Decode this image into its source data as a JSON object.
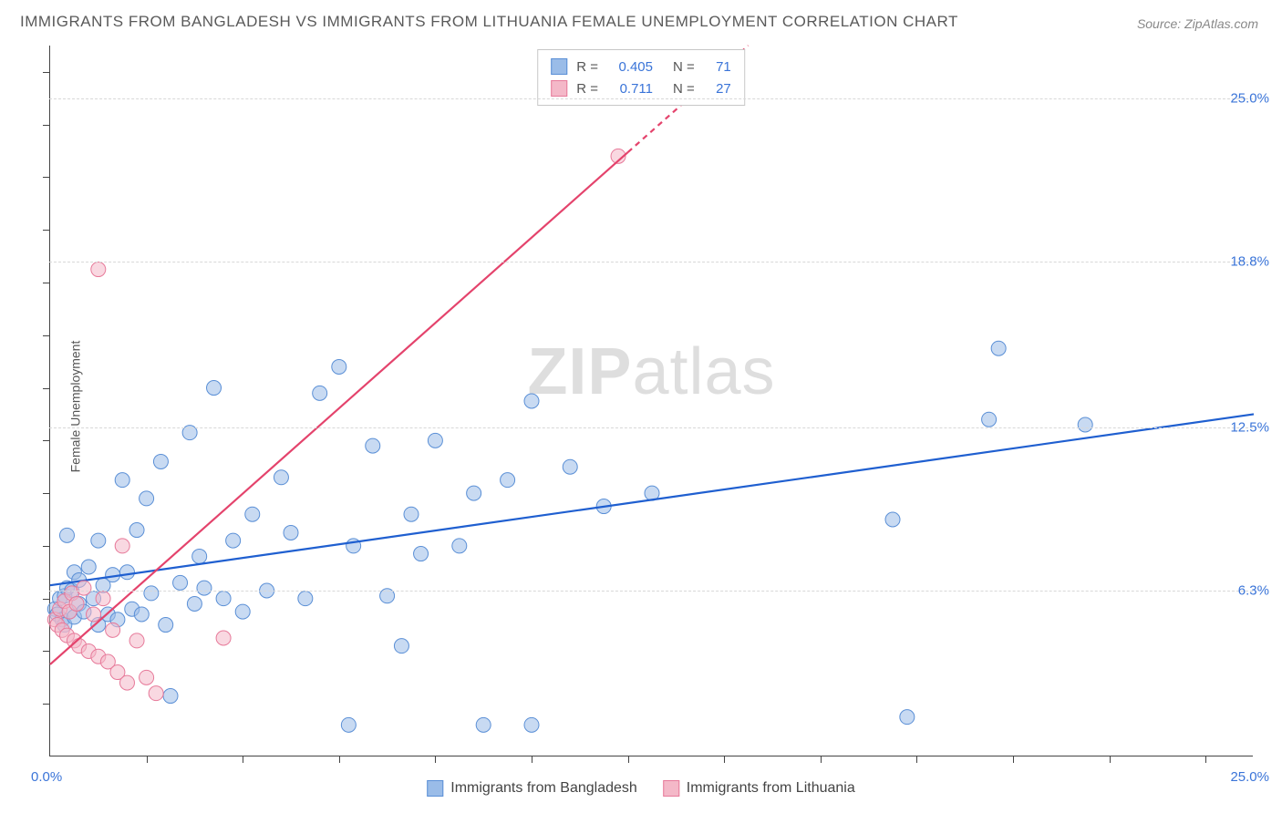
{
  "title": "IMMIGRANTS FROM BANGLADESH VS IMMIGRANTS FROM LITHUANIA FEMALE UNEMPLOYMENT CORRELATION CHART",
  "source": "Source: ZipAtlas.com",
  "y_axis_label": "Female Unemployment",
  "watermark": {
    "part1": "ZIP",
    "part2": "atlas"
  },
  "chart": {
    "type": "scatter",
    "xlim": [
      0,
      25
    ],
    "ylim": [
      0,
      27
    ],
    "x_ticks": [
      0.0,
      25.0
    ],
    "x_tick_labels": [
      "0.0%",
      "25.0%"
    ],
    "x_minor_ticks": [
      2.0,
      4.0,
      6.0,
      8.0,
      10.0,
      12.0,
      14.0,
      16.0,
      18.0,
      20.0,
      22.0,
      24.0
    ],
    "y_ticks": [
      6.3,
      12.5,
      18.8,
      25.0
    ],
    "y_tick_labels": [
      "6.3%",
      "12.5%",
      "18.8%",
      "25.0%"
    ],
    "grid_color": "#d8d8d8",
    "background_color": "#ffffff",
    "axis_color": "#444444",
    "marker_radius": 8,
    "marker_opacity": 0.55,
    "series": [
      {
        "name": "Immigrants from Bangladesh",
        "color_fill": "#9abce8",
        "color_stroke": "#5a8fd6",
        "line_color": "#1f5fd0",
        "line_width": 2.2,
        "R": "0.405",
        "N": "71",
        "regression": {
          "x1": 0,
          "y1": 6.5,
          "x2": 25,
          "y2": 13.0
        },
        "points": [
          [
            0.1,
            5.6
          ],
          [
            0.15,
            5.4
          ],
          [
            0.2,
            6.0
          ],
          [
            0.25,
            5.2
          ],
          [
            0.3,
            6.1
          ],
          [
            0.3,
            5.0
          ],
          [
            0.35,
            6.4
          ],
          [
            0.35,
            8.4
          ],
          [
            0.4,
            5.5
          ],
          [
            0.45,
            6.3
          ],
          [
            0.5,
            7.0
          ],
          [
            0.5,
            5.3
          ],
          [
            0.6,
            5.8
          ],
          [
            0.6,
            6.7
          ],
          [
            0.7,
            5.5
          ],
          [
            0.8,
            7.2
          ],
          [
            0.9,
            6.0
          ],
          [
            1.0,
            5.0
          ],
          [
            1.0,
            8.2
          ],
          [
            1.1,
            6.5
          ],
          [
            1.2,
            5.4
          ],
          [
            1.3,
            6.9
          ],
          [
            1.4,
            5.2
          ],
          [
            1.5,
            10.5
          ],
          [
            1.6,
            7.0
          ],
          [
            1.7,
            5.6
          ],
          [
            1.8,
            8.6
          ],
          [
            1.9,
            5.4
          ],
          [
            2.0,
            9.8
          ],
          [
            2.1,
            6.2
          ],
          [
            2.3,
            11.2
          ],
          [
            2.4,
            5.0
          ],
          [
            2.5,
            2.3
          ],
          [
            2.7,
            6.6
          ],
          [
            2.9,
            12.3
          ],
          [
            3.0,
            5.8
          ],
          [
            3.2,
            6.4
          ],
          [
            3.4,
            14.0
          ],
          [
            3.6,
            6.0
          ],
          [
            3.8,
            8.2
          ],
          [
            4.0,
            5.5
          ],
          [
            4.2,
            9.2
          ],
          [
            4.5,
            6.3
          ],
          [
            4.8,
            10.6
          ],
          [
            5.0,
            8.5
          ],
          [
            5.3,
            6.0
          ],
          [
            5.6,
            13.8
          ],
          [
            6.0,
            14.8
          ],
          [
            6.3,
            8.0
          ],
          [
            6.7,
            11.8
          ],
          [
            7.0,
            6.1
          ],
          [
            7.3,
            4.2
          ],
          [
            7.5,
            9.2
          ],
          [
            7.7,
            7.7
          ],
          [
            8.0,
            12.0
          ],
          [
            8.5,
            8.0
          ],
          [
            9.0,
            1.2
          ],
          [
            9.5,
            10.5
          ],
          [
            10.0,
            13.5
          ],
          [
            10.0,
            1.2
          ],
          [
            10.8,
            11.0
          ],
          [
            11.5,
            9.5
          ],
          [
            12.5,
            10.0
          ],
          [
            17.5,
            9.0
          ],
          [
            17.8,
            1.5
          ],
          [
            19.5,
            12.8
          ],
          [
            19.7,
            15.5
          ],
          [
            21.5,
            12.6
          ],
          [
            8.8,
            10.0
          ],
          [
            6.2,
            1.2
          ],
          [
            3.1,
            7.6
          ]
        ]
      },
      {
        "name": "Immigrants from Lithuania",
        "color_fill": "#f4b8c8",
        "color_stroke": "#e77a9a",
        "line_color": "#e4436c",
        "line_width": 2.2,
        "R": "0.711",
        "N": "27",
        "regression": {
          "x1": 0,
          "y1": 3.5,
          "x2": 14.5,
          "y2": 27.0
        },
        "regression_dash_from_x": 12.0,
        "points": [
          [
            0.1,
            5.2
          ],
          [
            0.15,
            5.0
          ],
          [
            0.2,
            5.6
          ],
          [
            0.25,
            4.8
          ],
          [
            0.3,
            5.9
          ],
          [
            0.35,
            4.6
          ],
          [
            0.4,
            5.5
          ],
          [
            0.45,
            6.2
          ],
          [
            0.5,
            4.4
          ],
          [
            0.55,
            5.8
          ],
          [
            0.6,
            4.2
          ],
          [
            0.7,
            6.4
          ],
          [
            0.8,
            4.0
          ],
          [
            0.9,
            5.4
          ],
          [
            1.0,
            3.8
          ],
          [
            1.1,
            6.0
          ],
          [
            1.2,
            3.6
          ],
          [
            1.3,
            4.8
          ],
          [
            1.4,
            3.2
          ],
          [
            1.5,
            8.0
          ],
          [
            1.6,
            2.8
          ],
          [
            1.8,
            4.4
          ],
          [
            2.0,
            3.0
          ],
          [
            2.2,
            2.4
          ],
          [
            3.6,
            4.5
          ],
          [
            1.0,
            18.5
          ],
          [
            11.8,
            22.8
          ]
        ]
      }
    ],
    "legend_top": {
      "rows": [
        {
          "swatch_fill": "#9abce8",
          "swatch_stroke": "#5a8fd6",
          "r_label": "R =",
          "r_val": "0.405",
          "n_label": "N =",
          "n_val": "71"
        },
        {
          "swatch_fill": "#f4b8c8",
          "swatch_stroke": "#e77a9a",
          "r_label": "R =",
          "r_val": "0.711",
          "n_label": "N =",
          "n_val": "27"
        }
      ]
    },
    "legend_bottom": [
      {
        "swatch_fill": "#9abce8",
        "swatch_stroke": "#5a8fd6",
        "label": "Immigrants from Bangladesh"
      },
      {
        "swatch_fill": "#f4b8c8",
        "swatch_stroke": "#e77a9a",
        "label": "Immigrants from Lithuania"
      }
    ]
  }
}
